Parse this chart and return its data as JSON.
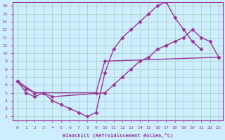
{
  "background_color": "#cceeff",
  "grid_color": "#aaccbb",
  "line_color": "#993399",
  "marker": "D",
  "markersize": 2.5,
  "linewidth": 1.0,
  "xlabel": "Windchill (Refroidissement éolien,°C)",
  "xlim": [
    -0.5,
    23.5
  ],
  "ylim": [
    1.5,
    16.5
  ],
  "xticks": [
    0,
    1,
    2,
    3,
    4,
    5,
    6,
    7,
    8,
    9,
    10,
    11,
    12,
    13,
    14,
    15,
    16,
    17,
    18,
    19,
    20,
    21,
    22,
    23
  ],
  "yticks": [
    2,
    3,
    4,
    5,
    6,
    7,
    8,
    9,
    10,
    11,
    12,
    13,
    14,
    15,
    16
  ],
  "curve_data": {
    "line1_x": [
      0,
      1,
      2,
      3,
      4,
      5,
      6,
      7,
      8,
      9,
      10,
      11,
      12,
      13,
      14,
      15,
      16,
      17,
      18,
      19,
      20,
      21
    ],
    "line1_y": [
      6.5,
      5.0,
      4.5,
      5.0,
      4.0,
      3.5,
      3.0,
      2.5,
      2.0,
      2.5,
      7.5,
      10.5,
      12.0,
      13.0,
      14.0,
      15.0,
      16.0,
      16.5,
      14.5,
      13.0,
      11.5,
      10.5
    ],
    "line2_x": [
      0,
      2,
      3,
      9,
      10,
      23
    ],
    "line2_y": [
      6.5,
      5.0,
      5.0,
      5.0,
      9.0,
      9.5
    ],
    "line3_x": [
      0,
      1,
      2,
      3,
      4,
      10,
      11,
      12,
      13,
      14,
      15,
      16,
      17,
      18,
      19,
      20,
      21,
      22,
      23
    ],
    "line3_y": [
      6.5,
      5.5,
      5.0,
      5.0,
      4.5,
      5.0,
      6.0,
      7.0,
      8.0,
      9.0,
      9.5,
      10.5,
      11.0,
      11.5,
      12.0,
      13.0,
      12.0,
      11.5,
      9.5
    ]
  }
}
